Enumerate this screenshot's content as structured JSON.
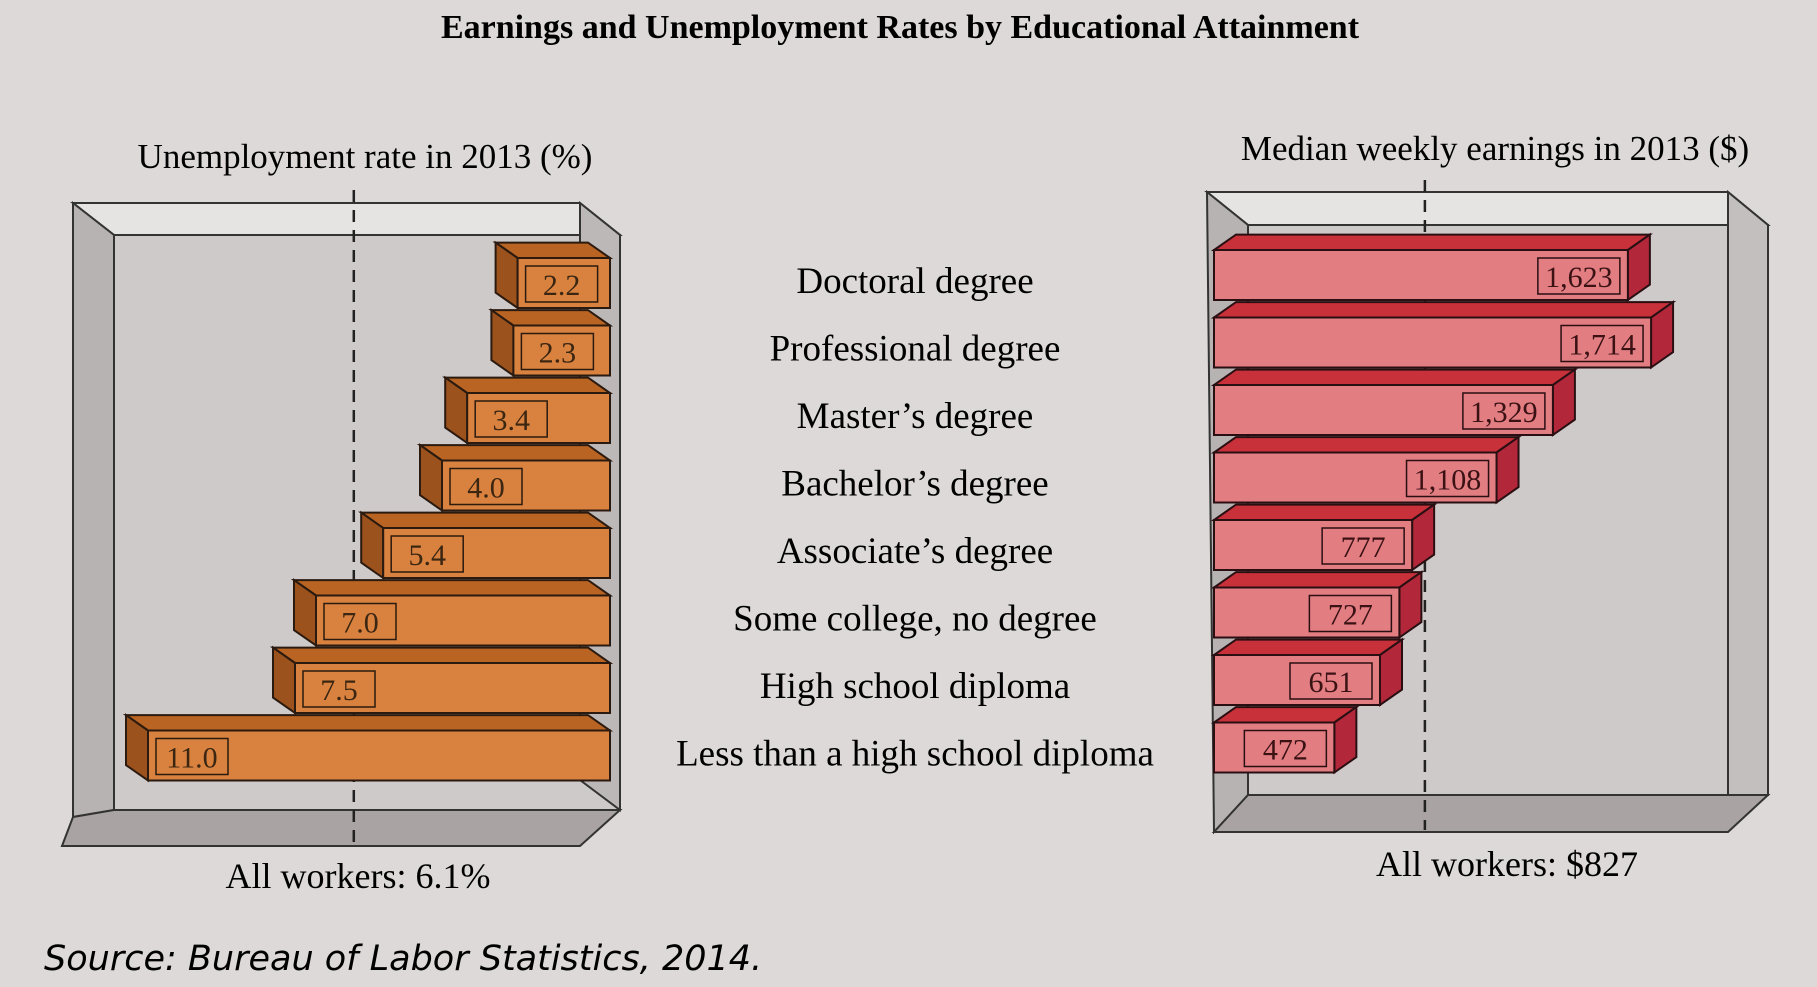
{
  "title": "Earnings and Unemployment Rates by Educational Attainment",
  "source": "Source: Bureau of Labor Statistics, 2014.",
  "categories": [
    "Doctoral degree",
    "Professional degree",
    "Master’s degree",
    "Bachelor’s degree",
    "Associate’s degree",
    "Some college, no degree",
    "High school diploma",
    "Less than a high school diploma"
  ],
  "colors": {
    "background": "#dcd9d8",
    "unemployment_bar": "#d9823f",
    "earnings_bar": "#e27d82"
  },
  "chart_data": [
    {
      "type": "bar",
      "orientation": "horizontal",
      "title": "Unemployment rate in 2013 (%)",
      "categories": [
        "Doctoral degree",
        "Professional degree",
        "Master’s degree",
        "Bachelor’s degree",
        "Associate’s degree",
        "Some college, no degree",
        "High school diploma",
        "Less than a high school diploma"
      ],
      "values": [
        2.2,
        2.3,
        3.4,
        4.0,
        5.4,
        7.0,
        7.5,
        11.0
      ],
      "value_labels": [
        "2.2",
        "2.3",
        "3.4",
        "4.0",
        "5.4",
        "7.0",
        "7.5",
        "11.0"
      ],
      "reference_line": 6.1,
      "footer": "All workers: 6.1%",
      "direction": "right-to-left",
      "xlim": [
        0,
        12
      ]
    },
    {
      "type": "bar",
      "orientation": "horizontal",
      "title": "Median weekly earnings in 2013 ($)",
      "categories": [
        "Doctoral degree",
        "Professional degree",
        "Master’s degree",
        "Bachelor’s degree",
        "Associate’s degree",
        "Some college, no degree",
        "High school diploma",
        "Less than a high school diploma"
      ],
      "values": [
        1623,
        1714,
        1329,
        1108,
        777,
        727,
        651,
        472
      ],
      "value_labels": [
        "1,623",
        "1,714",
        "1,329",
        "1,108",
        "777",
        "727",
        "651",
        "472"
      ],
      "reference_line": 827,
      "footer": "All workers: $827",
      "direction": "left-to-right",
      "xlim": [
        0,
        1800
      ]
    }
  ]
}
